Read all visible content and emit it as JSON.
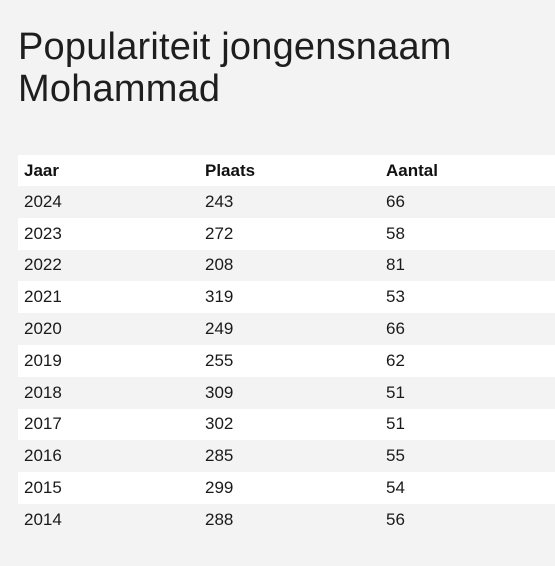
{
  "title": "Populariteit jongensnaam Mohammad",
  "table": {
    "headers": [
      "Jaar",
      "Plaats",
      "Aantal"
    ],
    "rows": [
      [
        "2024",
        "243",
        "66"
      ],
      [
        "2023",
        "272",
        "58"
      ],
      [
        "2022",
        "208",
        "81"
      ],
      [
        "2021",
        "319",
        "53"
      ],
      [
        "2020",
        "249",
        "66"
      ],
      [
        "2019",
        "255",
        "62"
      ],
      [
        "2018",
        "309",
        "51"
      ],
      [
        "2017",
        "302",
        "51"
      ],
      [
        "2016",
        "285",
        "55"
      ],
      [
        "2015",
        "299",
        "54"
      ],
      [
        "2014",
        "288",
        "56"
      ]
    ]
  }
}
